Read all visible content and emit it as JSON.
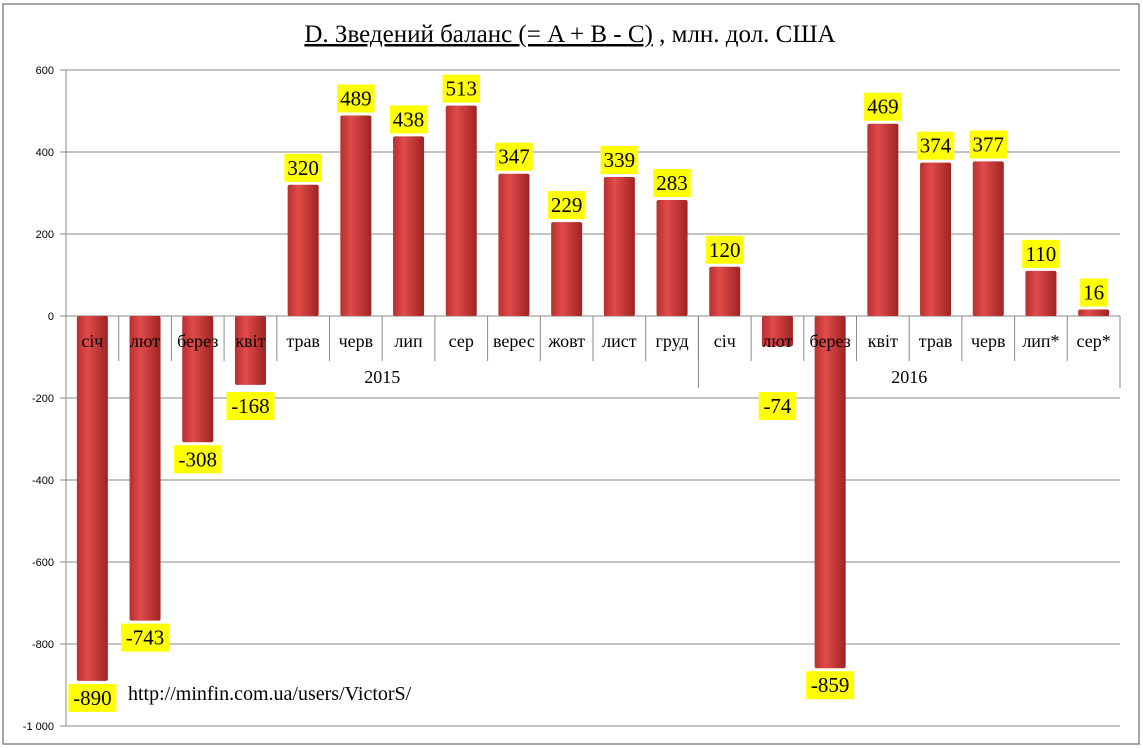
{
  "chart_data": {
    "type": "bar",
    "title_underlined": "D. Зведений баланс (= A + B - C)",
    "title_rest": " , млн. дол. США",
    "categories": [
      "січ",
      "лют",
      "берез",
      "квіт",
      "трав",
      "черв",
      "лип",
      "сер",
      "верес",
      "жовт",
      "лист",
      "груд",
      "січ",
      "лют",
      "берез",
      "квіт",
      "трав",
      "черв",
      "лип*",
      "сер*"
    ],
    "groups": [
      {
        "label": "2015",
        "count": 12
      },
      {
        "label": "2016",
        "count": 8
      }
    ],
    "values": [
      -890,
      -743,
      -308,
      -168,
      320,
      489,
      438,
      513,
      347,
      229,
      339,
      283,
      120,
      -74,
      -859,
      469,
      374,
      377,
      110,
      16
    ],
    "ylim": [
      -1000,
      600
    ],
    "yticks": [
      600,
      400,
      200,
      0,
      -200,
      -400,
      -600,
      -800,
      -1000
    ],
    "ytick_labels": [
      "600",
      "400",
      "200",
      "0",
      "-200",
      "-400",
      "-600",
      "-800",
      "-1 000"
    ],
    "grid": true,
    "bar_color": "#c0393b",
    "label_bg": "#ffff00",
    "watermark": "http://minfin.com.ua/users/VictorS/"
  }
}
